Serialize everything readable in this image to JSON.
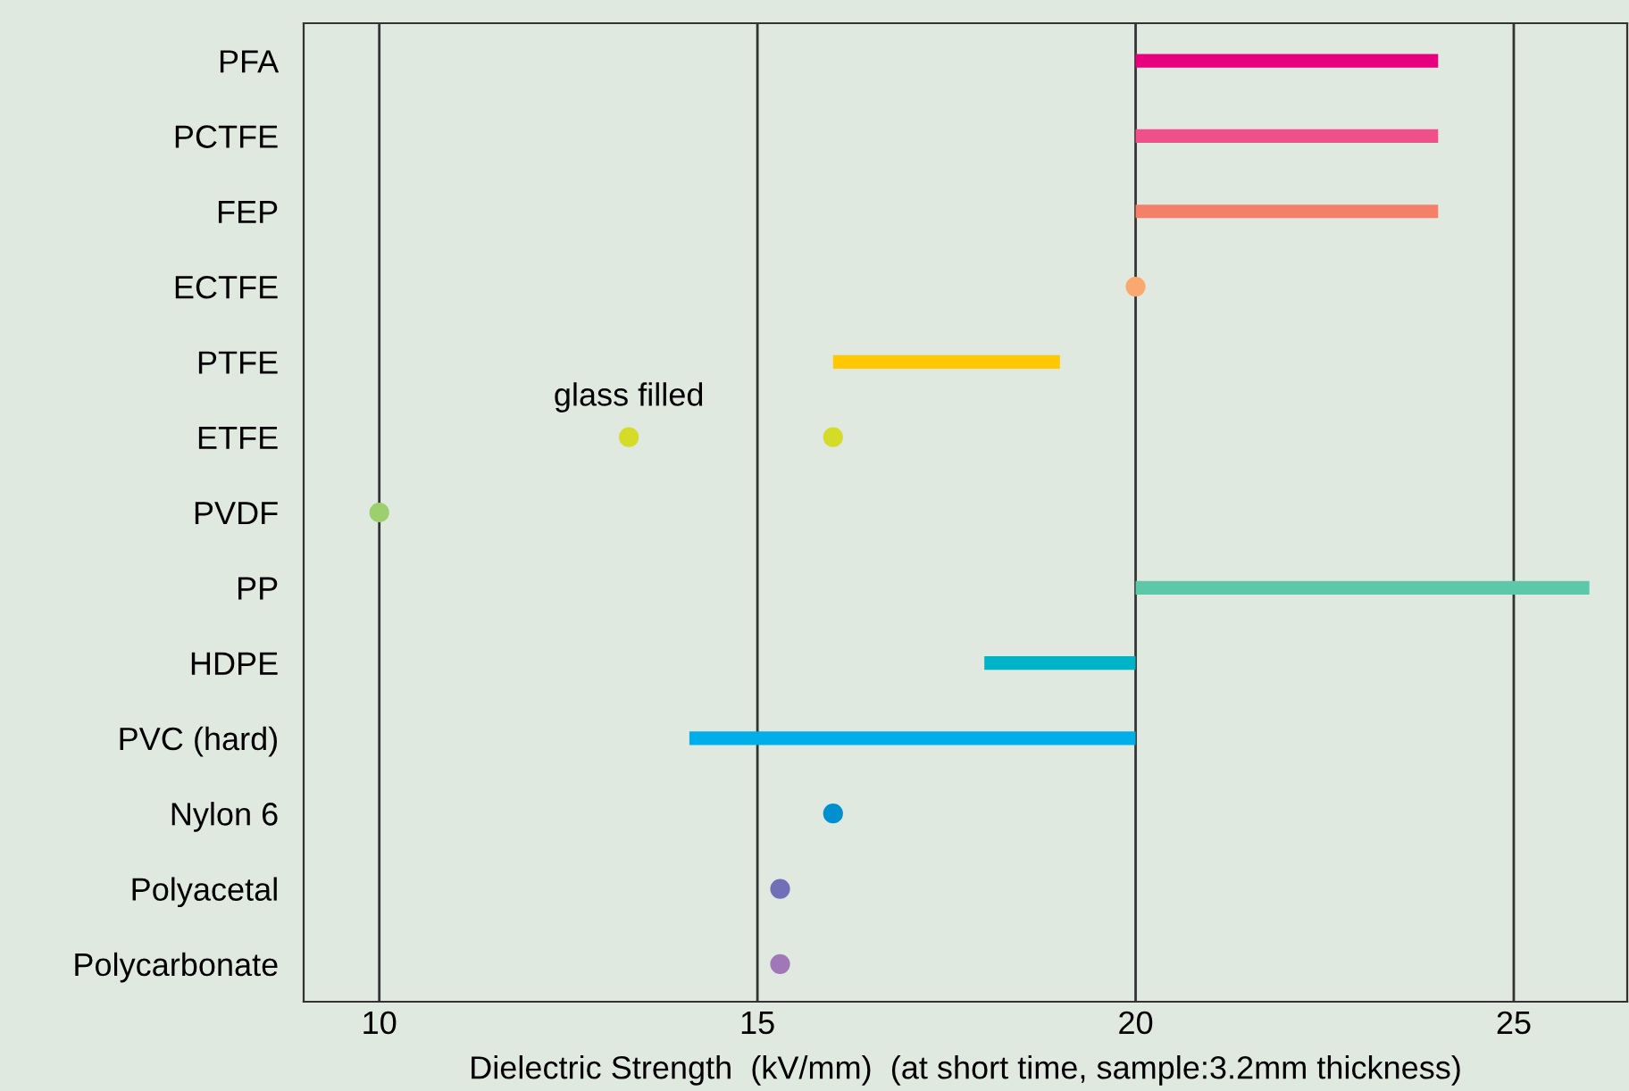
{
  "chart_data": {
    "type": "bar",
    "orientation": "horizontal",
    "xlabel": "Dielectric Strength  (kV/mm)  (at short time, sample:3.2mm thickness)",
    "categories": [
      "PFA",
      "PCTFE",
      "FEP",
      "ECTFE",
      "PTFE",
      "ETFE",
      "PVDF",
      "PP",
      "HDPE",
      "PVC (hard)",
      "Nylon 6",
      "Polyacetal",
      "Polycarbonate"
    ],
    "series": [
      {
        "base": [
          20,
          20,
          20,
          null,
          16,
          null,
          null,
          20,
          18,
          14.1,
          null,
          null,
          null
        ],
        "values": [
          4,
          4,
          4,
          null,
          3,
          null,
          null,
          6,
          2,
          5.9,
          null,
          null,
          null
        ],
        "colors": [
          "#e6007e",
          "#f0508a",
          "#f5806a",
          "#f9a870",
          "#ffc800",
          "#d4dc28",
          "#9ccf6e",
          "#5cc8a8",
          "#00b4c8",
          "#00aee8",
          "#0090d0",
          "#7070b8",
          "#a078b8"
        ]
      },
      {
        "type": "scatter",
        "values": [
          null,
          null,
          null,
          20,
          null,
          16,
          10,
          null,
          null,
          null,
          16,
          15.3,
          15.3
        ],
        "colors": [
          "#e6007e",
          "#f0508a",
          "#f5806a",
          "#f9a870",
          "#ffc800",
          "#d4dc28",
          "#9ccf6e",
          "#5cc8a8",
          "#00b4c8",
          "#00aee8",
          "#0090d0",
          "#7070b8",
          "#a078b8"
        ]
      },
      {
        "type": "scatter",
        "values": [
          null,
          null,
          null,
          null,
          null,
          13.3,
          null,
          null,
          null,
          null,
          null,
          null,
          null
        ],
        "colors": [
          "#e6007e",
          "#f0508a",
          "#f5806a",
          "#f9a870",
          "#ffc800",
          "#d4dc28",
          "#9ccf6e",
          "#5cc8a8",
          "#00b4c8",
          "#00aee8",
          "#0090d0",
          "#7070b8",
          "#a078b8"
        ]
      }
    ],
    "annotations": [
      {
        "text": "glass filled",
        "x": 13.3,
        "y": "ETFE"
      }
    ],
    "xlim": [
      9,
      26.5
    ],
    "xticks": [
      10,
      15,
      20,
      25
    ],
    "grid": "x",
    "marker": "circle"
  }
}
